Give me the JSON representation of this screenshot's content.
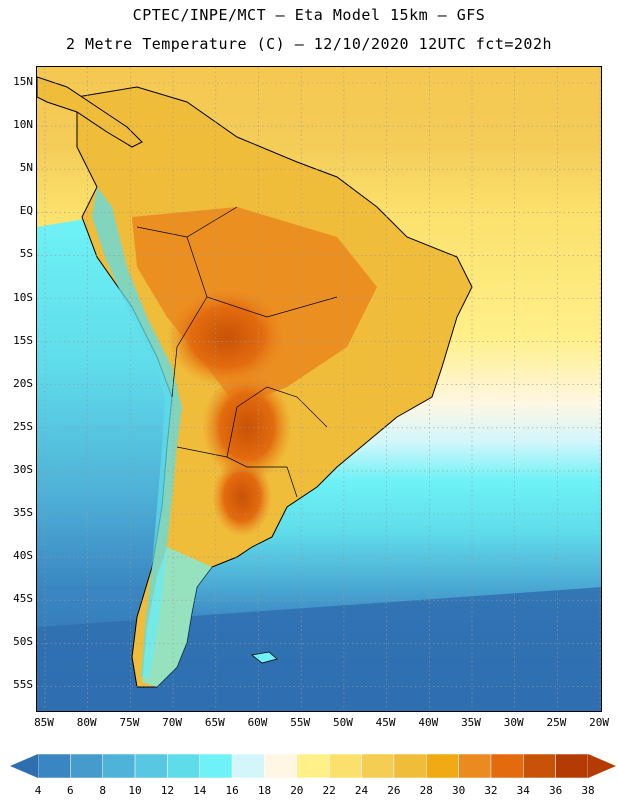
{
  "title_line1": "CPTEC/INPE/MCT –  Eta Model 15km – GFS",
  "title_line2": "2 Metre Temperature (C) – 12/10/2020 12UTC fct=202h",
  "lat_labels": [
    "15N",
    "10N",
    "5N",
    "EQ",
    "5S",
    "10S",
    "15S",
    "20S",
    "25S",
    "30S",
    "35S",
    "40S",
    "45S",
    "50S",
    "55S"
  ],
  "lon_labels": [
    "85W",
    "80W",
    "75W",
    "70W",
    "65W",
    "60W",
    "55W",
    "50W",
    "45W",
    "40W",
    "35W",
    "30W",
    "25W",
    "20W"
  ],
  "colorbar": {
    "labels": [
      "4",
      "6",
      "8",
      "10",
      "12",
      "14",
      "16",
      "18",
      "20",
      "22",
      "24",
      "26",
      "28",
      "30",
      "32",
      "34",
      "36",
      "38"
    ],
    "colors": [
      "#2f6fb0",
      "#3a86c2",
      "#449bcc",
      "#4fb2d8",
      "#58c8e2",
      "#5fdcea",
      "#6ff2f7",
      "#d3f6fb",
      "#fff7e3",
      "#fff08a",
      "#fbe06b",
      "#f5cd52",
      "#f0bd3a",
      "#f2aa14",
      "#eb8a1f",
      "#e36b0e",
      "#c85207",
      "#b53b04"
    ]
  },
  "icons": {
    "colorbar_low_arrow": "triangle-left-icon",
    "colorbar_high_arrow": "triangle-right-icon"
  }
}
